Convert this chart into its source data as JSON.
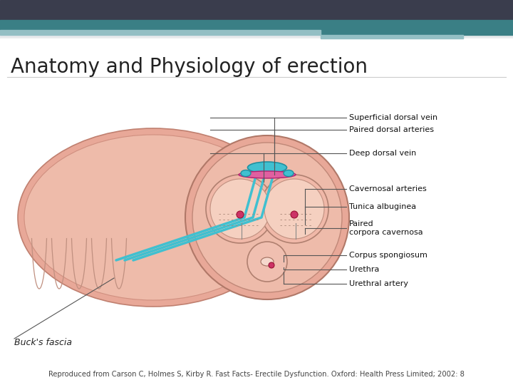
{
  "title": "Anatomy and Physiology of erection",
  "caption": "Reproduced from Carson C, Holmes S, Kirby R. Fast Facts- Erectile Dysfunction. Oxford: Health Press Limited; 2002: 8",
  "bg_color": "#e8eaec",
  "slide_bg": "#ffffff",
  "header1_color": "#3a3d4d",
  "header2_color": "#3a7f85",
  "header3_color": "#94bfc4",
  "title_color": "#222222",
  "title_fontsize": 20,
  "caption_fontsize": 7.2,
  "caption_color": "#444444",
  "buck_fascia_label": "Buck's fascia",
  "labels": [
    "Superficial dorsal vein",
    "Paired dorsal arteries",
    "Deep dorsal vein",
    "Cavernosal arteries",
    "Tunica albuginea",
    "Paired\ncorpora cavernosa",
    "Corpus spongiosum",
    "Urethra",
    "Urethral artery"
  ],
  "outer_skin_color": "#e8a898",
  "inner_skin_color": "#eebbaa",
  "corpus_fill": "#f0b8a8",
  "tunica_fill": "#f5d0c0",
  "spongiosum_fill": "#f0bfb0",
  "cyan_vein_color": "#40c0d0",
  "pink_artery_color": "#e060a0",
  "small_dot_color": "#cc3366",
  "line_color": "#555555",
  "label_fontsize": 8.0,
  "label_color": "#111111"
}
